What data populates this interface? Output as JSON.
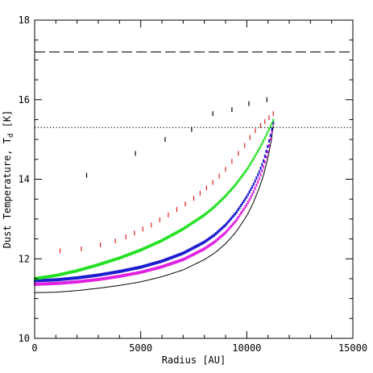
{
  "chart_data": {
    "type": "scatter",
    "xlabel": "Radius [AU]",
    "ylabel": "Dust Temperature, T",
    "ylabel_subscript": "d",
    "ylabel_unit": " [K]",
    "xlim": [
      0,
      15000
    ],
    "ylim": [
      10,
      18
    ],
    "x_ticks": [
      0,
      5000,
      10000,
      15000
    ],
    "x_tick_labels": [
      "0",
      "5000",
      "10000",
      "15000"
    ],
    "y_ticks": [
      10,
      12,
      14,
      16,
      18
    ],
    "y_tick_labels": [
      "10",
      "12",
      "14",
      "16",
      "18"
    ],
    "grid": false,
    "reference_lines": [
      {
        "style": "dashed",
        "y": 17.2,
        "color": "#000000"
      },
      {
        "style": "dotted",
        "y": 15.3,
        "color": "#000000"
      }
    ],
    "series": [
      {
        "style": "line",
        "color": "#000000",
        "x": [
          0,
          1000,
          2000,
          3000,
          4000,
          5000,
          6000,
          7000,
          8000,
          8500,
          9000,
          9500,
          10000,
          10300,
          10600,
          10800,
          11000,
          11150,
          11250
        ],
        "y": [
          11.15,
          11.16,
          11.2,
          11.26,
          11.33,
          11.42,
          11.55,
          11.72,
          11.98,
          12.15,
          12.38,
          12.68,
          13.08,
          13.4,
          13.8,
          14.12,
          14.55,
          14.95,
          15.35
        ]
      },
      {
        "style": "band",
        "color": "#e020e0",
        "x": [
          0,
          1000,
          2000,
          3000,
          4000,
          5000,
          6000,
          7000,
          8000,
          8500,
          9000,
          9500,
          10000,
          10300,
          10600,
          10800,
          11000,
          11150,
          11250
        ],
        "y": [
          11.36,
          11.38,
          11.42,
          11.48,
          11.56,
          11.66,
          11.8,
          11.98,
          12.25,
          12.43,
          12.66,
          12.96,
          13.36,
          13.66,
          14.03,
          14.33,
          14.72,
          15.08,
          15.4
        ]
      },
      {
        "style": "band",
        "color": "#1a1ad0",
        "x": [
          0,
          1000,
          2000,
          3000,
          4000,
          5000,
          6000,
          7000,
          8000,
          8500,
          9000,
          9500,
          10000,
          10300,
          10600,
          10800,
          11000,
          11150,
          11250
        ],
        "y": [
          11.45,
          11.47,
          11.52,
          11.59,
          11.68,
          11.79,
          11.94,
          12.14,
          12.42,
          12.61,
          12.85,
          13.16,
          13.56,
          13.85,
          14.2,
          14.48,
          14.85,
          15.17,
          15.43
        ]
      },
      {
        "style": "band",
        "color": "#22e022",
        "x": [
          0,
          1000,
          2000,
          3000,
          4000,
          5000,
          6000,
          7000,
          8000,
          8500,
          9000,
          9500,
          10000,
          10300,
          10600,
          10800,
          11000,
          11150,
          11250
        ],
        "y": [
          11.5,
          11.58,
          11.7,
          11.85,
          12.02,
          12.22,
          12.46,
          12.75,
          13.1,
          13.32,
          13.58,
          13.88,
          14.24,
          14.5,
          14.78,
          14.98,
          15.2,
          15.36,
          15.48
        ]
      },
      {
        "style": "ticks",
        "color": "#e02020",
        "x": [
          1200,
          2200,
          3100,
          3800,
          4300,
          4700,
          5100,
          5500,
          5900,
          6300,
          6700,
          7100,
          7500,
          7800,
          8100,
          8400,
          8700,
          9000,
          9300,
          9600,
          9900,
          10150,
          10400,
          10650,
          10850,
          11050,
          11250
        ],
        "y": [
          12.2,
          12.25,
          12.35,
          12.45,
          12.55,
          12.65,
          12.75,
          12.85,
          12.98,
          13.1,
          13.24,
          13.38,
          13.52,
          13.65,
          13.78,
          13.92,
          14.08,
          14.25,
          14.45,
          14.65,
          14.85,
          15.05,
          15.22,
          15.35,
          15.45,
          15.55,
          15.65
        ]
      },
      {
        "style": "ticks",
        "color": "#000000",
        "x": [
          2450,
          4750,
          6150,
          7400,
          8400,
          9300,
          10100,
          10950
        ],
        "y": [
          14.1,
          14.65,
          15.0,
          15.25,
          15.65,
          15.75,
          15.9,
          16.0
        ]
      }
    ]
  }
}
